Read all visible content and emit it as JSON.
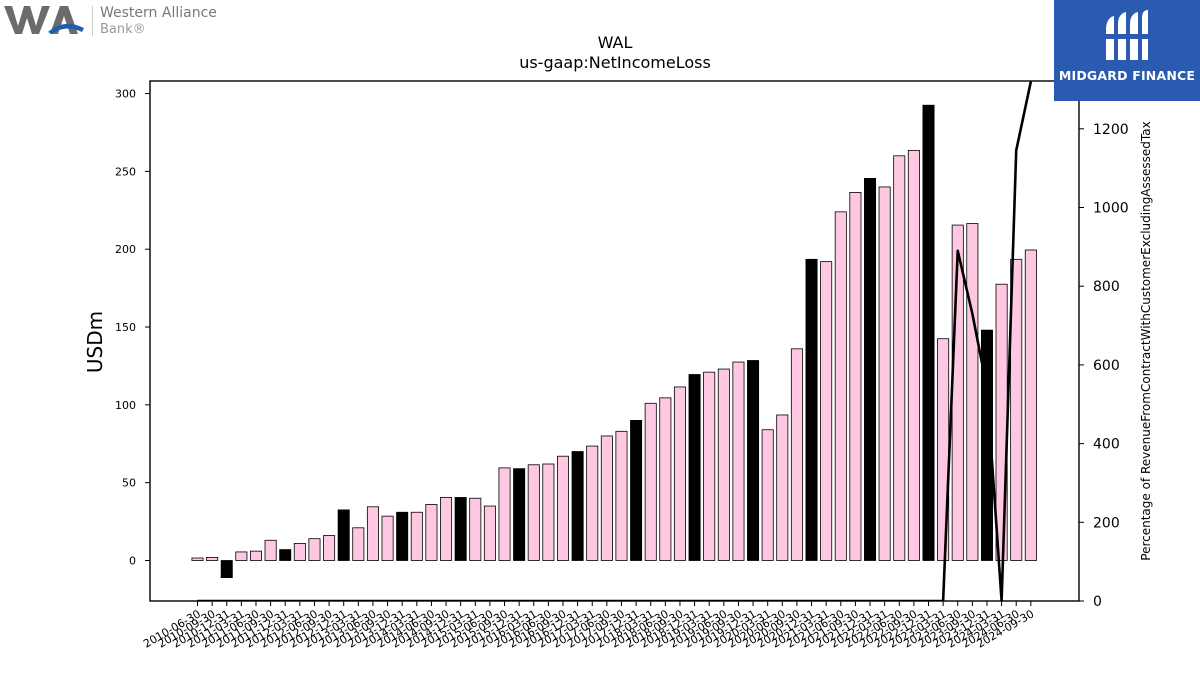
{
  "logos": {
    "left": {
      "line1": "Western Alliance",
      "line2": "Bank®",
      "icon": "western-alliance-wa-logo"
    },
    "right": {
      "text": "MIDGARD FINANCE",
      "icon": "midgard-finance-logo",
      "background": "#2a5bb0"
    }
  },
  "chart_data": {
    "type": "bar+line",
    "title": "WAL",
    "subtitle": "us-gaap:NetIncomeLoss",
    "ylabel": "USDm",
    "y2label": "Percentage of RevenueFromContractWithCustomerExcludingAssessedTax",
    "ylim": [
      -26,
      308
    ],
    "y2lim": [
      0,
      1320
    ],
    "yticks": [
      0,
      50,
      100,
      150,
      200,
      250,
      300
    ],
    "y2ticks": [
      0,
      200,
      400,
      600,
      800,
      1000,
      1200
    ],
    "colors": {
      "bar_pink": "#ffc8e2",
      "bar_black": "#000000",
      "line": "#000000"
    },
    "categories": [
      "2010-06-30",
      "2010-09-30",
      "2010-12-31",
      "2011-03-31",
      "2011-06-30",
      "2011-09-30",
      "2011-12-31",
      "2012-03-31",
      "2012-06-30",
      "2012-09-30",
      "2012-12-31",
      "2013-03-31",
      "2013-06-30",
      "2013-09-30",
      "2013-12-31",
      "2014-03-31",
      "2014-06-30",
      "2014-09-30",
      "2014-12-31",
      "2015-03-31",
      "2015-06-30",
      "2015-09-30",
      "2015-12-31",
      "2016-03-31",
      "2016-06-30",
      "2016-09-30",
      "2016-12-31",
      "2017-03-31",
      "2017-06-30",
      "2017-09-30",
      "2017-12-31",
      "2018-03-31",
      "2018-06-30",
      "2018-09-30",
      "2018-12-31",
      "2019-03-31",
      "2019-06-30",
      "2019-09-30",
      "2019-12-31",
      "2020-03-31",
      "2020-06-30",
      "2020-09-30",
      "2020-12-31",
      "2021-03-31",
      "2021-06-30",
      "2021-09-30",
      "2021-12-31",
      "2022-03-31",
      "2022-06-30",
      "2022-09-30",
      "2022-12-31",
      "2023-03-31",
      "2023-06-30",
      "2023-09-30",
      "2023-12-31",
      "2024-03-31",
      "2024-06-30",
      "2024-09-30"
    ],
    "tick_labels": [
      "2010-06-30",
      "2010-09-30",
      "2010-12-31",
      "2011-03-31",
      "2011-06-30",
      "2011-09-30",
      "2011-12-31",
      "2012-03-31",
      "2012-06-30",
      "2012-09-30",
      "2012-12-31",
      "2013-03-31",
      "2013-06-30",
      "2013-09-30",
      "2013-12-31",
      "2014-03-31",
      "2014-06-30",
      "2014-09-30",
      "2014-12-31",
      "2015-03-31",
      "2015-06-30",
      "2015-09-30",
      "2015-12-31",
      "2016-03-31",
      "2016-06-30",
      "2016-09-30",
      "2016-12-31",
      "2017-03-31",
      "2017-06-30",
      "2017-09-30",
      "2017-12-31",
      "2018-03-31",
      "2018-06-30",
      "2018-09-30",
      "2018-12-31",
      "2019-03-31",
      "2019-06-30",
      "2019-09-30",
      "2019-12-31",
      "2020-03-31",
      "2020-06-30",
      "2020-09-30",
      "2020-12-31",
      "2021-03-31",
      "2021-06-30",
      "2021-09-30",
      "2021-12-31",
      "2022-03-31",
      "2022-06-30",
      "2022-09-30",
      "2022-12-31",
      "2023-03-31",
      "2023-06-30",
      "2023-09-30",
      "2023-12-31",
      "2024-03-31",
      "2024-06-30",
      "2024-09-30"
    ],
    "bar_values": [
      1.6,
      2,
      -11,
      5.5,
      6,
      13,
      7,
      11,
      14,
      16,
      32.5,
      21,
      34.5,
      28.5,
      31,
      31,
      36,
      40.5,
      40.5,
      40,
      35,
      59.5,
      59,
      61.5,
      62,
      67,
      70,
      73.5,
      80,
      83,
      90,
      101,
      104.5,
      111.5,
      119.5,
      121,
      123,
      127.5,
      128.5,
      84,
      93.5,
      136,
      193.5,
      192,
      224,
      236.5,
      245.5,
      240,
      260,
      263.5,
      292.5,
      142.5,
      215.5,
      216.5,
      148,
      177.5,
      193.5,
      199.5
    ],
    "bar_highlight": [
      false,
      false,
      true,
      false,
      false,
      false,
      true,
      false,
      false,
      false,
      true,
      false,
      false,
      false,
      true,
      false,
      false,
      false,
      true,
      false,
      false,
      false,
      true,
      false,
      false,
      false,
      true,
      false,
      false,
      false,
      true,
      false,
      false,
      false,
      true,
      false,
      false,
      false,
      true,
      false,
      false,
      false,
      true,
      false,
      false,
      false,
      true,
      false,
      false,
      false,
      true,
      false,
      false,
      false,
      true,
      false,
      false,
      false
    ],
    "line": {
      "axis": "right",
      "values": [
        0,
        0,
        0,
        0,
        0,
        0,
        0,
        0,
        0,
        0,
        0,
        0,
        0,
        0,
        0,
        0,
        0,
        0,
        0,
        0,
        0,
        0,
        0,
        0,
        0,
        0,
        0,
        0,
        0,
        0,
        0,
        0,
        0,
        0,
        0,
        0,
        0,
        0,
        0,
        0,
        0,
        0,
        0,
        0,
        0,
        0,
        0,
        0,
        0,
        0,
        0,
        0,
        890,
        730,
        540,
        0,
        1145,
        1320
      ]
    }
  }
}
